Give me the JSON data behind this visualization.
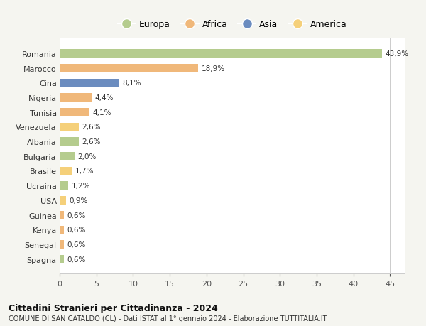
{
  "countries": [
    "Romania",
    "Marocco",
    "Cina",
    "Nigeria",
    "Tunisia",
    "Venezuela",
    "Albania",
    "Bulgaria",
    "Brasile",
    "Ucraina",
    "USA",
    "Guinea",
    "Kenya",
    "Senegal",
    "Spagna"
  ],
  "values": [
    43.9,
    18.9,
    8.1,
    4.4,
    4.1,
    2.6,
    2.6,
    2.0,
    1.7,
    1.2,
    0.9,
    0.6,
    0.6,
    0.6,
    0.6
  ],
  "labels": [
    "43,9%",
    "18,9%",
    "8,1%",
    "4,4%",
    "4,1%",
    "2,6%",
    "2,6%",
    "2,0%",
    "1,7%",
    "1,2%",
    "0,9%",
    "0,6%",
    "0,6%",
    "0,6%",
    "0,6%"
  ],
  "colors": [
    "#b5cc8e",
    "#f0b87a",
    "#6b8cbf",
    "#f0b87a",
    "#f0b87a",
    "#f5d07a",
    "#b5cc8e",
    "#b5cc8e",
    "#f5d07a",
    "#b5cc8e",
    "#f5d07a",
    "#f0b87a",
    "#f0b87a",
    "#f0b87a",
    "#b5cc8e"
  ],
  "continents": [
    "Europa",
    "Africa",
    "Asia",
    "America"
  ],
  "legend_colors": [
    "#b5cc8e",
    "#f0b87a",
    "#6b8cbf",
    "#f5d07a"
  ],
  "title": "Cittadini Stranieri per Cittadinanza - 2024",
  "subtitle": "COMUNE DI SAN CATALDO (CL) - Dati ISTAT al 1° gennaio 2024 - Elaborazione TUTTITALIA.IT",
  "xlim": [
    0,
    47
  ],
  "xticks": [
    0,
    5,
    10,
    15,
    20,
    25,
    30,
    35,
    40,
    45
  ],
  "bg_color": "#f5f5f0",
  "plot_bg_color": "#ffffff",
  "grid_color": "#cccccc"
}
